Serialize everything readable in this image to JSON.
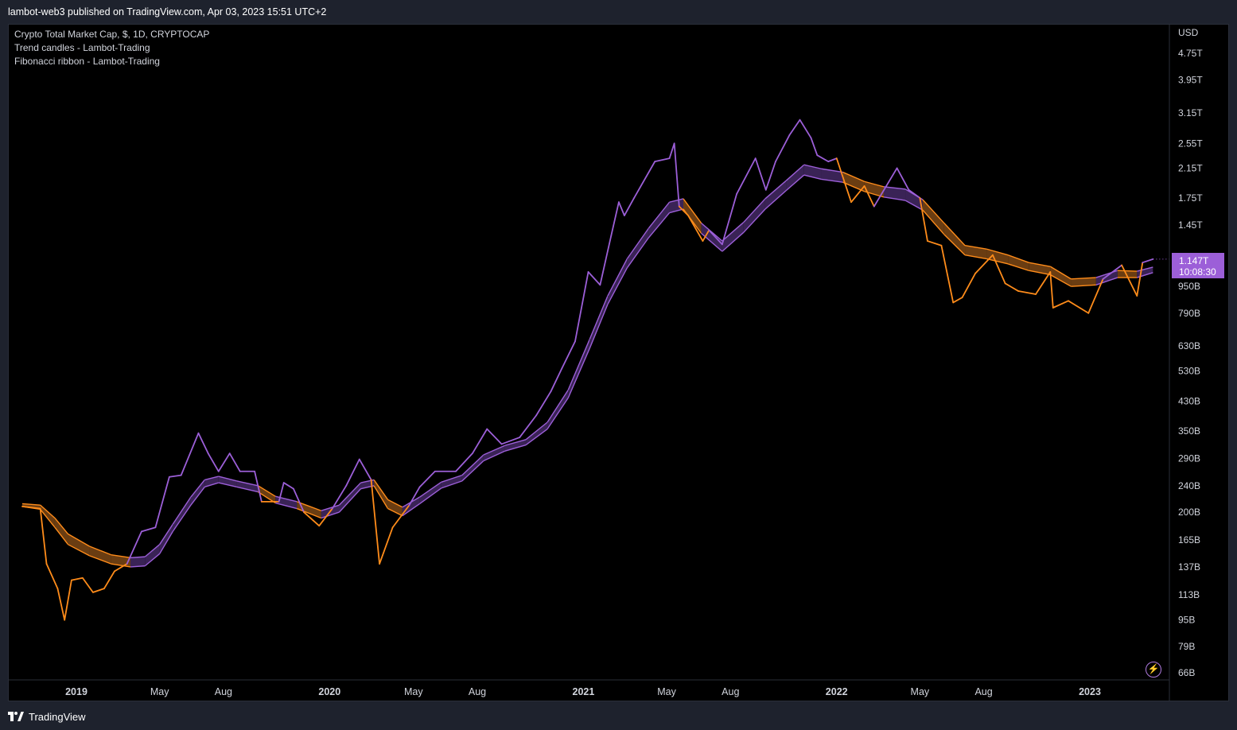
{
  "header": {
    "published": "lambot-web3 published on TradingView.com, Apr 03, 2023 15:51 UTC+2"
  },
  "legend": {
    "symbol": "Crypto Total Market Cap, $, 1D, CRYPTOCAP",
    "indicator_1": "Trend candles - Lambot-Trading",
    "indicator_2": "Fibonacci ribbon - Lambot-Trading"
  },
  "price_label": {
    "price": "1.147T",
    "countdown": "10:08:30"
  },
  "footer": {
    "brand": "TradingView"
  },
  "icons": {
    "logo": "tradingview-logo-icon",
    "bolt": "lightning-bolt-icon"
  },
  "colors": {
    "bull": "#9c5fd8",
    "bear": "#ff8c1a",
    "ribbon_bull_fill": "#3a2356",
    "ribbon_bear_fill": "#6a3d12",
    "background": "#000000",
    "panel": "#1e222d"
  },
  "chart_data": {
    "type": "line",
    "title": "Crypto Total Market Cap, $, 1D, CRYPTOCAP",
    "currency": "USD",
    "scale": "log",
    "grid": false,
    "ylim": [
      66,
      5200
    ],
    "x_ticks": [
      "2019",
      "May",
      "Aug",
      "2020",
      "May",
      "Aug",
      "2021",
      "May",
      "Aug",
      "2022",
      "May",
      "Aug",
      "2023"
    ],
    "x_tick_dates": [
      "2019-01-01",
      "2019-05-01",
      "2019-08-01",
      "2020-01-01",
      "2020-05-01",
      "2020-08-01",
      "2021-01-01",
      "2021-05-01",
      "2021-08-01",
      "2022-01-01",
      "2022-05-01",
      "2022-08-01",
      "2023-01-01"
    ],
    "y_ticks": [
      {
        "label": "4.75T",
        "value": 4750
      },
      {
        "label": "3.95T",
        "value": 3950
      },
      {
        "label": "3.15T",
        "value": 3150
      },
      {
        "label": "2.55T",
        "value": 2550
      },
      {
        "label": "2.15T",
        "value": 2150
      },
      {
        "label": "1.75T",
        "value": 1750
      },
      {
        "label": "1.45T",
        "value": 1450
      },
      {
        "label": "950B",
        "value": 950
      },
      {
        "label": "790B",
        "value": 790
      },
      {
        "label": "630B",
        "value": 630
      },
      {
        "label": "530B",
        "value": 530
      },
      {
        "label": "430B",
        "value": 430
      },
      {
        "label": "350B",
        "value": 350
      },
      {
        "label": "290B",
        "value": 290
      },
      {
        "label": "240B",
        "value": 240
      },
      {
        "label": "200B",
        "value": 200
      },
      {
        "label": "165B",
        "value": 165
      },
      {
        "label": "137B",
        "value": 137
      },
      {
        "label": "113B",
        "value": 113
      },
      {
        "label": "95B",
        "value": 95
      },
      {
        "label": "79B",
        "value": 79
      },
      {
        "label": "66B",
        "value": 66
      }
    ],
    "axis_unit_label": "USD",
    "series": [
      {
        "role": "price",
        "data": [
          [
            "2018-10-15",
            208
          ],
          [
            "2018-11-10",
            205
          ],
          [
            "2018-11-19",
            140
          ],
          [
            "2018-12-05",
            118
          ],
          [
            "2018-12-15",
            95
          ],
          [
            "2018-12-25",
            125
          ],
          [
            "2019-01-10",
            127
          ],
          [
            "2019-01-25",
            115
          ],
          [
            "2019-02-10",
            118
          ],
          [
            "2019-02-25",
            133
          ],
          [
            "2019-03-15",
            140
          ],
          [
            "2019-04-05",
            175
          ],
          [
            "2019-04-25",
            180
          ],
          [
            "2019-05-15",
            255
          ],
          [
            "2019-06-01",
            258
          ],
          [
            "2019-06-26",
            345
          ],
          [
            "2019-07-10",
            300
          ],
          [
            "2019-07-25",
            265
          ],
          [
            "2019-08-10",
            300
          ],
          [
            "2019-08-25",
            265
          ],
          [
            "2019-09-15",
            265
          ],
          [
            "2019-09-25",
            215
          ],
          [
            "2019-10-20",
            215
          ],
          [
            "2019-10-27",
            245
          ],
          [
            "2019-11-10",
            235
          ],
          [
            "2019-11-25",
            200
          ],
          [
            "2019-12-17",
            182
          ],
          [
            "2020-01-05",
            205
          ],
          [
            "2020-01-25",
            240
          ],
          [
            "2020-02-13",
            288
          ],
          [
            "2020-03-01",
            250
          ],
          [
            "2020-03-13",
            140
          ],
          [
            "2020-04-01",
            180
          ],
          [
            "2020-04-25",
            210
          ],
          [
            "2020-05-10",
            238
          ],
          [
            "2020-06-01",
            265
          ],
          [
            "2020-07-01",
            265
          ],
          [
            "2020-07-25",
            300
          ],
          [
            "2020-08-15",
            355
          ],
          [
            "2020-09-05",
            320
          ],
          [
            "2020-10-01",
            335
          ],
          [
            "2020-10-25",
            390
          ],
          [
            "2020-11-15",
            460
          ],
          [
            "2020-12-01",
            540
          ],
          [
            "2020-12-20",
            650
          ],
          [
            "2021-01-08",
            1050
          ],
          [
            "2021-01-25",
            960
          ],
          [
            "2021-02-10",
            1350
          ],
          [
            "2021-02-21",
            1700
          ],
          [
            "2021-03-01",
            1550
          ],
          [
            "2021-03-15",
            1750
          ],
          [
            "2021-04-14",
            2250
          ],
          [
            "2021-05-05",
            2300
          ],
          [
            "2021-05-12",
            2550
          ],
          [
            "2021-05-19",
            1650
          ],
          [
            "2021-06-01",
            1550
          ],
          [
            "2021-06-22",
            1300
          ],
          [
            "2021-07-01",
            1400
          ],
          [
            "2021-07-20",
            1270
          ],
          [
            "2021-08-10",
            1800
          ],
          [
            "2021-09-06",
            2300
          ],
          [
            "2021-09-21",
            1850
          ],
          [
            "2021-10-05",
            2250
          ],
          [
            "2021-10-25",
            2700
          ],
          [
            "2021-11-09",
            3000
          ],
          [
            "2021-11-25",
            2650
          ],
          [
            "2021-12-04",
            2350
          ],
          [
            "2021-12-20",
            2250
          ],
          [
            "2022-01-01",
            2300
          ],
          [
            "2022-01-22",
            1700
          ],
          [
            "2022-02-10",
            1900
          ],
          [
            "2022-02-24",
            1650
          ],
          [
            "2022-03-29",
            2150
          ],
          [
            "2022-04-15",
            1850
          ],
          [
            "2022-05-01",
            1750
          ],
          [
            "2022-05-12",
            1300
          ],
          [
            "2022-06-01",
            1260
          ],
          [
            "2022-06-18",
            850
          ],
          [
            "2022-07-01",
            880
          ],
          [
            "2022-07-20",
            1040
          ],
          [
            "2022-08-14",
            1180
          ],
          [
            "2022-09-01",
            970
          ],
          [
            "2022-09-20",
            920
          ],
          [
            "2022-10-15",
            900
          ],
          [
            "2022-11-05",
            1050
          ],
          [
            "2022-11-09",
            820
          ],
          [
            "2022-12-01",
            860
          ],
          [
            "2022-12-30",
            790
          ],
          [
            "2023-01-20",
            1000
          ],
          [
            "2023-02-16",
            1100
          ],
          [
            "2023-03-10",
            890
          ],
          [
            "2023-03-18",
            1120
          ],
          [
            "2023-04-02",
            1147
          ]
        ]
      },
      {
        "role": "ribbon",
        "data": [
          [
            "2018-10-15",
            208,
            212
          ],
          [
            "2018-11-10",
            204,
            210
          ],
          [
            "2018-12-01",
            180,
            192
          ],
          [
            "2018-12-20",
            160,
            172
          ],
          [
            "2019-01-20",
            148,
            158
          ],
          [
            "2019-02-20",
            140,
            149
          ],
          [
            "2019-03-20",
            137,
            146
          ],
          [
            "2019-04-10",
            138,
            147
          ],
          [
            "2019-05-01",
            150,
            160
          ],
          [
            "2019-05-20",
            175,
            184
          ],
          [
            "2019-06-15",
            210,
            222
          ],
          [
            "2019-07-05",
            238,
            250
          ],
          [
            "2019-07-25",
            245,
            256
          ],
          [
            "2019-08-20",
            238,
            248
          ],
          [
            "2019-09-20",
            230,
            240
          ],
          [
            "2019-10-15",
            213,
            223
          ],
          [
            "2019-11-15",
            205,
            215
          ],
          [
            "2019-12-20",
            192,
            202
          ],
          [
            "2020-01-15",
            200,
            210
          ],
          [
            "2020-02-15",
            235,
            245
          ],
          [
            "2020-03-05",
            240,
            250
          ],
          [
            "2020-03-25",
            205,
            218
          ],
          [
            "2020-04-15",
            195,
            207
          ],
          [
            "2020-05-10",
            212,
            222
          ],
          [
            "2020-06-10",
            236,
            246
          ],
          [
            "2020-07-10",
            248,
            258
          ],
          [
            "2020-08-10",
            285,
            297
          ],
          [
            "2020-09-10",
            305,
            317
          ],
          [
            "2020-10-10",
            318,
            330
          ],
          [
            "2020-11-10",
            355,
            372
          ],
          [
            "2020-12-10",
            440,
            465
          ],
          [
            "2021-01-10",
            620,
            660
          ],
          [
            "2021-02-05",
            840,
            890
          ],
          [
            "2021-03-05",
            1080,
            1150
          ],
          [
            "2021-04-05",
            1330,
            1420
          ],
          [
            "2021-05-05",
            1580,
            1700
          ],
          [
            "2021-05-25",
            1620,
            1740
          ],
          [
            "2021-06-20",
            1370,
            1470
          ],
          [
            "2021-07-20",
            1210,
            1300
          ],
          [
            "2021-08-20",
            1380,
            1480
          ],
          [
            "2021-09-20",
            1620,
            1740
          ],
          [
            "2021-10-20",
            1840,
            1970
          ],
          [
            "2021-11-15",
            2050,
            2200
          ],
          [
            "2021-12-10",
            1990,
            2140
          ],
          [
            "2022-01-10",
            1950,
            2090
          ],
          [
            "2022-02-10",
            1830,
            1960
          ],
          [
            "2022-03-10",
            1760,
            1890
          ],
          [
            "2022-04-10",
            1720,
            1860
          ],
          [
            "2022-05-05",
            1610,
            1730
          ],
          [
            "2022-06-05",
            1360,
            1470
          ],
          [
            "2022-07-05",
            1180,
            1260
          ],
          [
            "2022-08-05",
            1150,
            1230
          ],
          [
            "2022-09-05",
            1110,
            1180
          ],
          [
            "2022-10-05",
            1060,
            1120
          ],
          [
            "2022-11-05",
            1030,
            1090
          ],
          [
            "2022-12-05",
            950,
            1000
          ],
          [
            "2023-01-10",
            960,
            1010
          ],
          [
            "2023-02-10",
            1010,
            1060
          ],
          [
            "2023-03-10",
            1010,
            1055
          ],
          [
            "2023-04-02",
            1045,
            1085
          ]
        ]
      }
    ]
  }
}
